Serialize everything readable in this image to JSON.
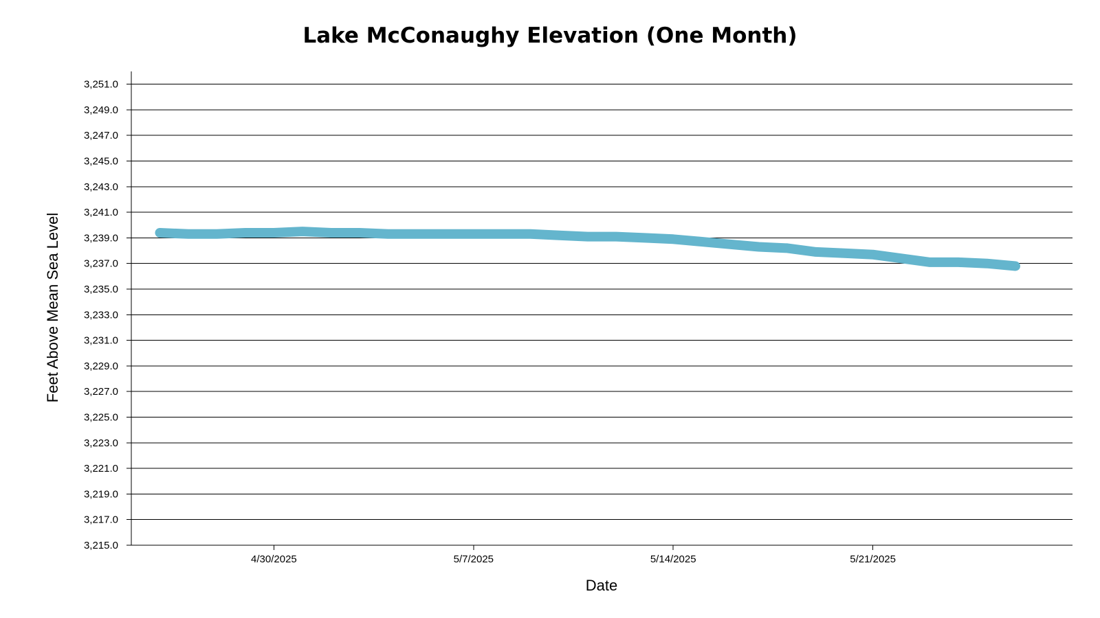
{
  "chart_data": {
    "type": "line",
    "title": "Lake McConaughy Elevation (One Month)",
    "xlabel": "Date",
    "ylabel": "Feet Above Mean Sea Level",
    "ylim": [
      3215.0,
      3252.0
    ],
    "yticks": [
      3215.0,
      3217.0,
      3219.0,
      3221.0,
      3223.0,
      3225.0,
      3227.0,
      3229.0,
      3231.0,
      3233.0,
      3235.0,
      3237.0,
      3239.0,
      3241.0,
      3243.0,
      3245.0,
      3247.0,
      3249.0,
      3251.0
    ],
    "ytick_labels": [
      "3,215.0",
      "3,217.0",
      "3,219.0",
      "3,221.0",
      "3,223.0",
      "3,225.0",
      "3,227.0",
      "3,229.0",
      "3,231.0",
      "3,233.0",
      "3,235.0",
      "3,237.0",
      "3,239.0",
      "3,241.0",
      "3,243.0",
      "3,245.0",
      "3,247.0",
      "3,249.0",
      "3,251.0"
    ],
    "xlim": [
      "2025-04-25",
      "2025-05-28"
    ],
    "xticks": [
      "2025-04-30",
      "2025-05-07",
      "2025-05-14",
      "2025-05-21"
    ],
    "xtick_labels": [
      "4/30/2025",
      "5/7/2025",
      "5/14/2025",
      "5/21/2025"
    ],
    "grid": true,
    "line_color": "#64b5cd",
    "series": [
      {
        "x": [
          "2025-04-26",
          "2025-04-27",
          "2025-04-28",
          "2025-04-29",
          "2025-04-30",
          "2025-05-01",
          "2025-05-02",
          "2025-05-03",
          "2025-05-04",
          "2025-05-05",
          "2025-05-06",
          "2025-05-07",
          "2025-05-08",
          "2025-05-09",
          "2025-05-10",
          "2025-05-11",
          "2025-05-12",
          "2025-05-13",
          "2025-05-14",
          "2025-05-15",
          "2025-05-16",
          "2025-05-17",
          "2025-05-18",
          "2025-05-19",
          "2025-05-20",
          "2025-05-21",
          "2025-05-22",
          "2025-05-23",
          "2025-05-24",
          "2025-05-25",
          "2025-05-26"
        ],
        "y": [
          3239.4,
          3239.3,
          3239.3,
          3239.4,
          3239.4,
          3239.5,
          3239.4,
          3239.4,
          3239.3,
          3239.3,
          3239.3,
          3239.3,
          3239.3,
          3239.3,
          3239.2,
          3239.1,
          3239.1,
          3239.0,
          3238.9,
          3238.7,
          3238.5,
          3238.3,
          3238.2,
          3237.9,
          3237.8,
          3237.7,
          3237.4,
          3237.1,
          3237.1,
          3237.0,
          3236.8
        ]
      }
    ]
  }
}
